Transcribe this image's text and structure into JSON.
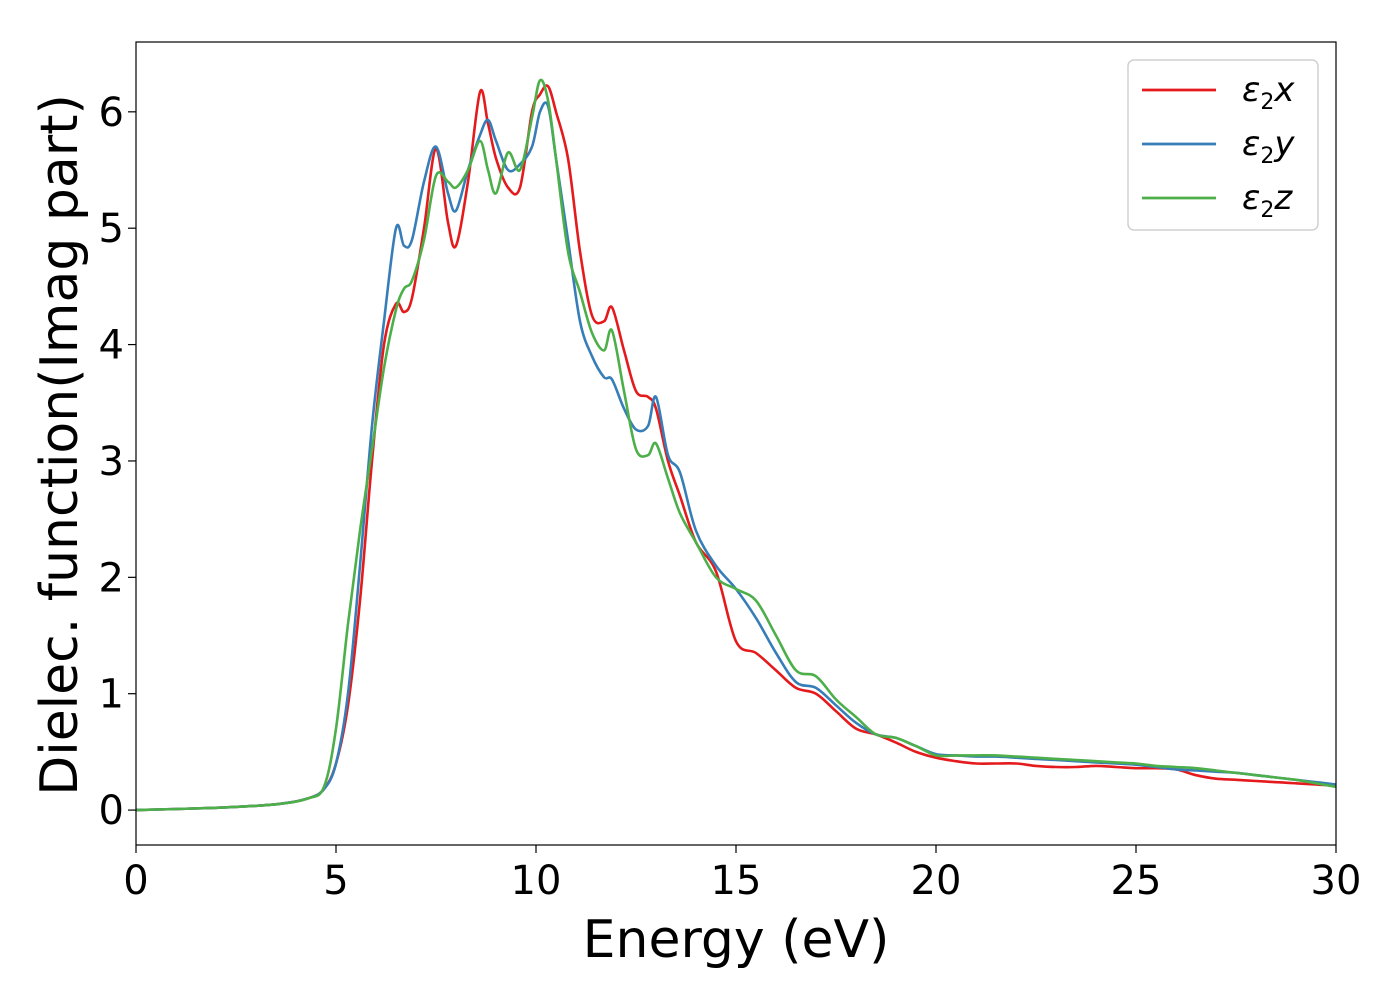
{
  "chart_data": {
    "type": "line",
    "title": "",
    "xlabel": "Energy (eV)",
    "ylabel": "Dielec. function(Imag part)",
    "xlim": [
      0,
      30
    ],
    "ylim": [
      -0.3,
      6.6
    ],
    "xticks": [
      0,
      5,
      10,
      15,
      20,
      25,
      30
    ],
    "yticks": [
      0,
      1,
      2,
      3,
      4,
      5,
      6
    ],
    "xtick_labels": [
      "0",
      "5",
      "10",
      "15",
      "20",
      "25",
      "30"
    ],
    "ytick_labels": [
      "0",
      "1",
      "2",
      "3",
      "4",
      "5",
      "6"
    ],
    "grid": false,
    "legend_position": "top-right",
    "series": [
      {
        "name": "ε2x",
        "color": "#e41a1c",
        "x": [
          0,
          2,
          3.5,
          4.3,
          4.7,
          5.0,
          5.3,
          5.6,
          5.9,
          6.2,
          6.5,
          6.7,
          6.9,
          7.2,
          7.5,
          7.8,
          8.0,
          8.3,
          8.6,
          8.8,
          9.0,
          9.3,
          9.6,
          9.9,
          10.1,
          10.3,
          10.5,
          10.8,
          11.1,
          11.4,
          11.7,
          11.9,
          12.2,
          12.5,
          12.8,
          13.0,
          13.3,
          13.6,
          14.0,
          14.5,
          15.0,
          15.5,
          16.0,
          16.5,
          17.0,
          17.5,
          18.0,
          18.5,
          19.0,
          19.5,
          20.0,
          20.5,
          21.0,
          21.5,
          22.0,
          22.5,
          23.0,
          23.5,
          24.0,
          24.5,
          25.0,
          25.5,
          26.0,
          26.5,
          27.0,
          27.5,
          28.0,
          28.5,
          29.0,
          29.5,
          30.0
        ],
        "y": [
          0.0,
          0.02,
          0.05,
          0.1,
          0.18,
          0.4,
          0.9,
          1.8,
          3.0,
          4.0,
          4.35,
          4.28,
          4.4,
          5.0,
          5.68,
          5.05,
          4.85,
          5.4,
          6.17,
          5.9,
          5.6,
          5.35,
          5.35,
          6.0,
          6.15,
          6.22,
          6.0,
          5.6,
          4.8,
          4.25,
          4.2,
          4.32,
          3.95,
          3.6,
          3.55,
          3.45,
          3.0,
          2.7,
          2.3,
          2.05,
          1.45,
          1.35,
          1.2,
          1.05,
          1.0,
          0.85,
          0.7,
          0.65,
          0.58,
          0.5,
          0.45,
          0.42,
          0.4,
          0.4,
          0.4,
          0.38,
          0.37,
          0.37,
          0.38,
          0.37,
          0.36,
          0.36,
          0.35,
          0.3,
          0.27,
          0.26,
          0.25,
          0.24,
          0.23,
          0.22,
          0.21
        ]
      },
      {
        "name": "ε2y",
        "color": "#377eb8",
        "x": [
          0,
          2,
          3.5,
          4.3,
          4.7,
          5.0,
          5.3,
          5.6,
          5.9,
          6.2,
          6.5,
          6.7,
          6.9,
          7.2,
          7.5,
          7.8,
          8.0,
          8.3,
          8.6,
          8.8,
          9.0,
          9.3,
          9.6,
          9.9,
          10.1,
          10.3,
          10.5,
          10.8,
          11.1,
          11.4,
          11.7,
          11.9,
          12.2,
          12.5,
          12.8,
          13.0,
          13.3,
          13.6,
          14.0,
          14.5,
          15.0,
          15.5,
          16.0,
          16.5,
          17.0,
          17.5,
          18.0,
          18.5,
          19.0,
          19.5,
          20.0,
          20.5,
          21.0,
          21.5,
          22.0,
          22.5,
          23.0,
          23.5,
          24.0,
          24.5,
          25.0,
          25.5,
          26.0,
          26.5,
          27.0,
          27.5,
          28.0,
          28.5,
          29.0,
          29.5,
          30.0
        ],
        "y": [
          0.0,
          0.02,
          0.05,
          0.1,
          0.18,
          0.4,
          1.0,
          2.1,
          3.3,
          4.2,
          5.0,
          4.85,
          4.9,
          5.4,
          5.7,
          5.3,
          5.15,
          5.5,
          5.8,
          5.93,
          5.75,
          5.5,
          5.55,
          5.7,
          6.0,
          6.05,
          5.6,
          4.9,
          4.2,
          3.9,
          3.72,
          3.7,
          3.45,
          3.27,
          3.3,
          3.55,
          3.05,
          2.9,
          2.4,
          2.1,
          1.9,
          1.65,
          1.35,
          1.1,
          1.05,
          0.9,
          0.75,
          0.65,
          0.62,
          0.55,
          0.48,
          0.47,
          0.46,
          0.46,
          0.45,
          0.44,
          0.43,
          0.42,
          0.41,
          0.4,
          0.39,
          0.37,
          0.35,
          0.34,
          0.33,
          0.32,
          0.3,
          0.28,
          0.26,
          0.24,
          0.22
        ]
      },
      {
        "name": "ε2z",
        "color": "#4daf4a",
        "x": [
          0,
          2,
          3.5,
          4.3,
          4.7,
          5.0,
          5.3,
          5.6,
          5.9,
          6.2,
          6.5,
          6.7,
          6.9,
          7.2,
          7.5,
          7.8,
          8.0,
          8.3,
          8.6,
          8.8,
          9.0,
          9.3,
          9.6,
          9.9,
          10.1,
          10.3,
          10.5,
          10.8,
          11.1,
          11.4,
          11.7,
          11.9,
          12.2,
          12.5,
          12.8,
          13.0,
          13.3,
          13.6,
          14.0,
          14.5,
          15.0,
          15.5,
          16.0,
          16.5,
          17.0,
          17.5,
          18.0,
          18.5,
          19.0,
          19.5,
          20.0,
          20.5,
          21.0,
          21.5,
          22.0,
          22.5,
          23.0,
          23.5,
          24.0,
          24.5,
          25.0,
          25.5,
          26.0,
          26.5,
          27.0,
          27.5,
          28.0,
          28.5,
          29.0,
          29.5,
          30.0
        ],
        "y": [
          0.0,
          0.02,
          0.05,
          0.1,
          0.2,
          0.7,
          1.6,
          2.4,
          3.1,
          3.8,
          4.3,
          4.48,
          4.55,
          4.9,
          5.45,
          5.4,
          5.35,
          5.5,
          5.75,
          5.5,
          5.3,
          5.65,
          5.5,
          5.95,
          6.27,
          6.1,
          5.6,
          4.8,
          4.45,
          4.1,
          3.95,
          4.12,
          3.6,
          3.1,
          3.05,
          3.15,
          2.85,
          2.55,
          2.3,
          2.0,
          1.9,
          1.8,
          1.5,
          1.2,
          1.15,
          0.95,
          0.8,
          0.65,
          0.62,
          0.55,
          0.47,
          0.47,
          0.47,
          0.47,
          0.46,
          0.45,
          0.44,
          0.43,
          0.42,
          0.41,
          0.4,
          0.38,
          0.37,
          0.36,
          0.34,
          0.32,
          0.3,
          0.28,
          0.26,
          0.23,
          0.2
        ]
      }
    ]
  }
}
